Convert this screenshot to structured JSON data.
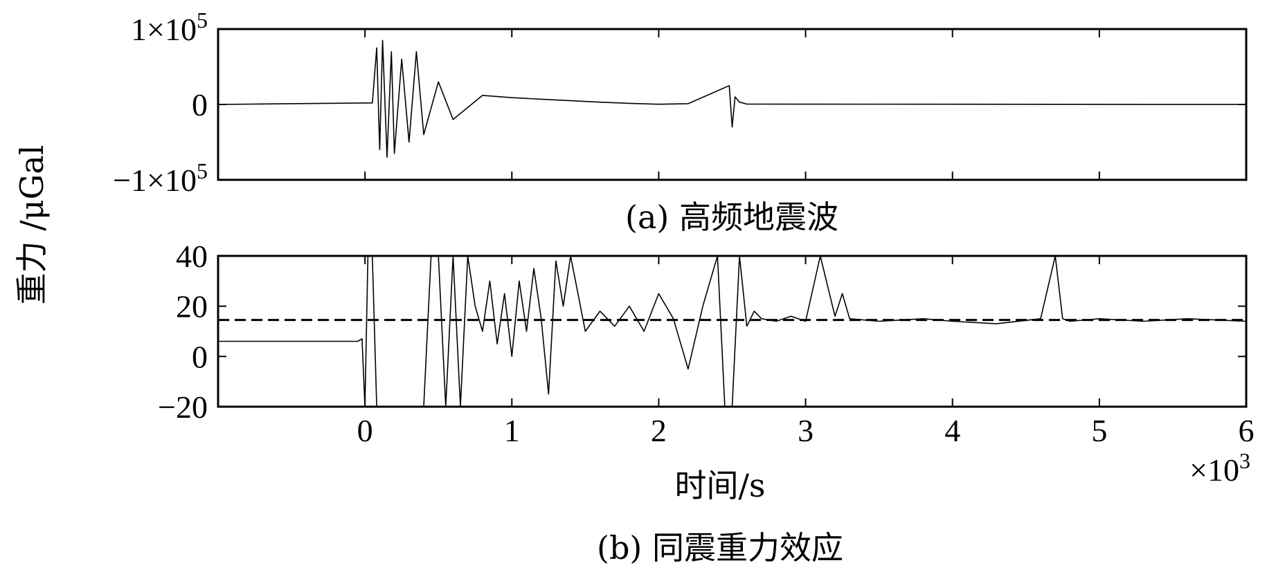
{
  "figure": {
    "ylabel": "重力 /μGal",
    "caption_a": "(a) 高频地震波",
    "caption_b": "(b) 同震重力效应",
    "xlabel": "时间/s",
    "x_multiplier": "×10",
    "x_multiplier_exp": "3"
  },
  "chart_data": [
    {
      "type": "line",
      "panel": "a",
      "title": "(a) 高频地震波",
      "ylabel": "重力 /μGal",
      "xlim": [
        -1.0,
        6.0
      ],
      "ylim": [
        -100000,
        100000
      ],
      "x_ticks": [
        -1,
        0,
        1,
        2,
        3,
        4,
        5,
        6
      ],
      "y_ticks": [
        {
          "value": 100000,
          "mantissa": "1",
          "exp": "5"
        },
        {
          "value": 0,
          "label": "0"
        },
        {
          "value": -100000,
          "mantissa": "−1",
          "exp": "5"
        }
      ],
      "times_sign": "×",
      "base": "10",
      "series": [
        {
          "x": [
            -1.0,
            0.05,
            0.08,
            0.1,
            0.12,
            0.15,
            0.18,
            0.2,
            0.25,
            0.3,
            0.35,
            0.4,
            0.5,
            0.6,
            0.8,
            1.0,
            1.2,
            1.4,
            1.6,
            1.8,
            1.9,
            2.0,
            2.2,
            2.48,
            2.5,
            2.52,
            2.55,
            2.6,
            6.0
          ],
          "y": [
            0,
            2000,
            75000,
            -60000,
            85000,
            -70000,
            70000,
            -65000,
            60000,
            -50000,
            70000,
            -40000,
            30000,
            -20000,
            12000,
            9000,
            7000,
            5000,
            3000,
            1500,
            800,
            300,
            1000,
            25000,
            -30000,
            10000,
            3000,
            500,
            0
          ]
        }
      ],
      "grid": false
    },
    {
      "type": "line",
      "panel": "b",
      "title": "(b) 同震重力效应",
      "ylabel": "重力 /μGal",
      "xlabel": "时间/s",
      "xlim": [
        -1.0,
        6.0
      ],
      "ylim": [
        -20,
        40
      ],
      "x_ticks": [
        0,
        1,
        2,
        3,
        4,
        5,
        6
      ],
      "y_ticks": [
        40,
        20,
        0,
        -20
      ],
      "x_tick_labels": [
        "0",
        "1",
        "2",
        "3",
        "4",
        "5",
        "6"
      ],
      "y_tick_labels": [
        "40",
        "20",
        "0",
        "−20"
      ],
      "x_scale": "×10^3",
      "series": [
        {
          "style": "solid",
          "x": [
            -1.0,
            -0.05,
            -0.02,
            0.0,
            0.02,
            0.05,
            0.08,
            0.4,
            0.45,
            0.5,
            0.55,
            0.6,
            0.65,
            0.7,
            0.75,
            0.8,
            0.85,
            0.9,
            0.95,
            1.0,
            1.05,
            1.1,
            1.15,
            1.2,
            1.25,
            1.3,
            1.35,
            1.4,
            1.45,
            1.5,
            1.6,
            1.7,
            1.8,
            1.9,
            2.0,
            2.1,
            2.2,
            2.3,
            2.4,
            2.45,
            2.5,
            2.55,
            2.6,
            2.65,
            2.7,
            2.8,
            2.9,
            3.0,
            3.1,
            3.2,
            3.25,
            3.3,
            3.5,
            3.8,
            4.0,
            4.3,
            4.6,
            4.7,
            4.75,
            4.8,
            5.0,
            5.3,
            5.6,
            6.0
          ],
          "y": [
            6,
            6,
            7,
            -20,
            40,
            40,
            -20,
            -20,
            40,
            40,
            -20,
            40,
            -20,
            40,
            20,
            10,
            30,
            5,
            25,
            0,
            30,
            10,
            35,
            15,
            -15,
            38,
            20,
            40,
            25,
            10,
            18,
            12,
            20,
            10,
            25,
            15,
            -5,
            20,
            40,
            -20,
            -20,
            40,
            12,
            18,
            15,
            14,
            16,
            14,
            40,
            16,
            25,
            15,
            14,
            15,
            14,
            13,
            15,
            40,
            15,
            14,
            15,
            14,
            15,
            14
          ]
        },
        {
          "style": "dashed",
          "x": [
            -1.0,
            6.0
          ],
          "y": [
            14.5,
            14.5
          ]
        }
      ],
      "grid": false
    }
  ]
}
